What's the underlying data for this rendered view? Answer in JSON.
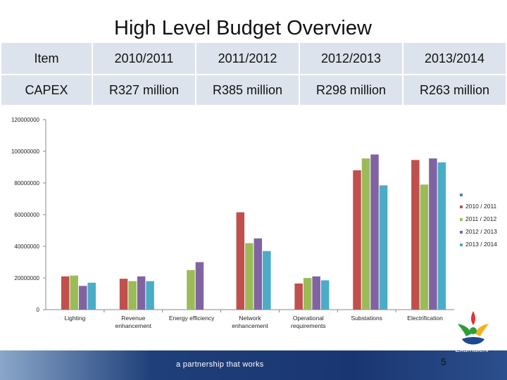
{
  "slide": {
    "title": "High Level Budget Overview",
    "page_number": "5",
    "tagline": "a partnership that works",
    "logo_text": "Ekurhuleni"
  },
  "table": {
    "headers": [
      "Item",
      "2010/2011",
      "2011/2012",
      "2012/2013",
      "2013/2014"
    ],
    "rows": [
      [
        "CAPEX",
        "R327 million",
        "R385 million",
        "R298 million",
        "R263 million"
      ]
    ]
  },
  "chart_data": {
    "type": "bar",
    "categories": [
      "Lighting",
      "Revenue enhancement",
      "Energy efficiency",
      "Network enhancement",
      "Operational requirements",
      "Substations",
      "Electrification"
    ],
    "category_lines": [
      [
        "Lighting"
      ],
      [
        "Revenue",
        "enhancement"
      ],
      [
        "Energy efficiency"
      ],
      [
        "Network",
        "enhancement"
      ],
      [
        "Operational",
        "requirements"
      ],
      [
        "Substations"
      ],
      [
        "Electrification"
      ]
    ],
    "series": [
      {
        "name": "2010 / 2011",
        "color": "#c0504d",
        "values": [
          21000000,
          19500000,
          0,
          61500000,
          16500000,
          88000000,
          94500000
        ]
      },
      {
        "name": "2011 / 2012",
        "color": "#9bbb59",
        "values": [
          21500000,
          18000000,
          25000000,
          42000000,
          20000000,
          95500000,
          79000000
        ]
      },
      {
        "name": "2012 / 2013",
        "color": "#8064a2",
        "values": [
          15000000,
          21000000,
          30000000,
          45000000,
          21000000,
          98000000,
          95500000
        ]
      },
      {
        "name": "2013 / 2014",
        "color": "#4bacc6",
        "values": [
          17000000,
          18000000,
          0,
          37000000,
          18500000,
          78500000,
          93000000
        ]
      }
    ],
    "legend_blank_marker_color": "#4f81bd",
    "yticks": [
      "120000000",
      "100000000",
      "80000000",
      "60000000",
      "40000000",
      "20000000",
      "0"
    ],
    "ylim": [
      0,
      120000000
    ],
    "title": "",
    "xlabel": "",
    "ylabel": "",
    "legend_position": "right"
  }
}
